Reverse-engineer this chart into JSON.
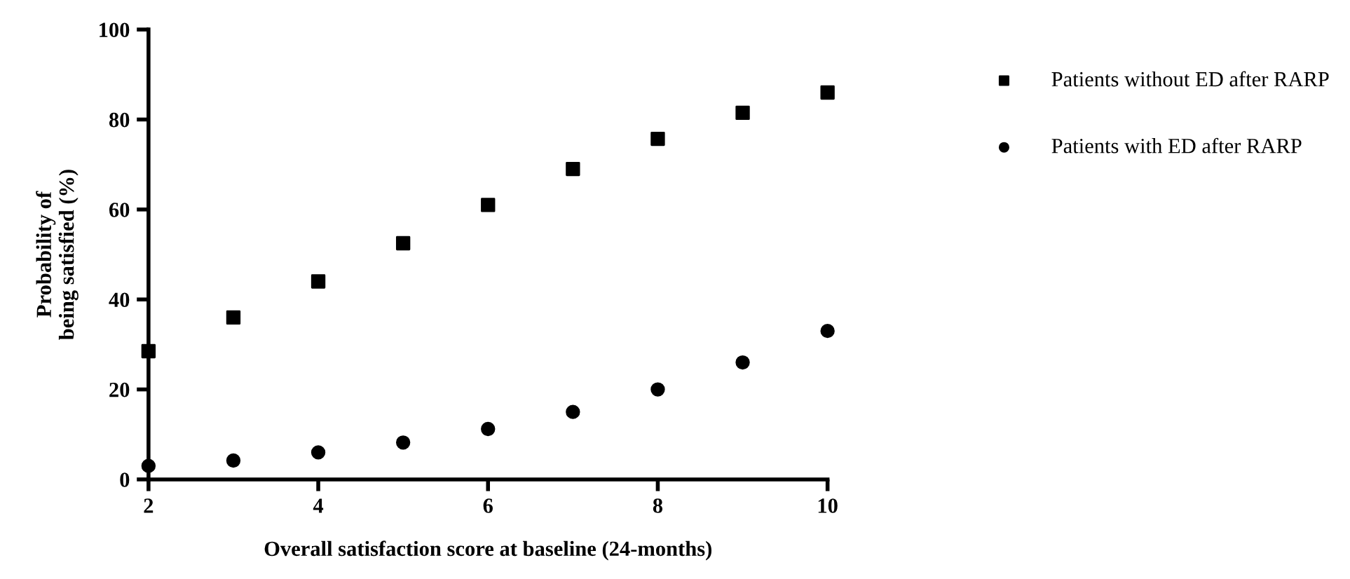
{
  "chart_data": {
    "type": "scatter",
    "xlabel": "Overall satisfaction score at baseline (24-months)",
    "ylabel": "Probability of\nbeing satisfied (%)",
    "x": [
      2,
      3,
      4,
      5,
      6,
      7,
      8,
      9,
      10
    ],
    "series": [
      {
        "name": "Patients without ED after RARP",
        "color": "#000000",
        "marker": "square",
        "values": [
          28.5,
          36,
          44,
          52.5,
          61,
          69,
          75.7,
          81.5,
          86
        ]
      },
      {
        "name": "Patients with ED after RARP",
        "color": "#000000",
        "marker": "circle",
        "values": [
          3,
          4.2,
          6,
          8.2,
          11.2,
          15,
          20,
          26,
          33
        ]
      }
    ],
    "xlim": [
      2,
      10
    ],
    "xticks": [
      2,
      4,
      6,
      8,
      10
    ],
    "ylim": [
      0,
      100
    ],
    "yticks": [
      0,
      20,
      40,
      60,
      80,
      100
    ],
    "grid": false,
    "legend": "right"
  }
}
